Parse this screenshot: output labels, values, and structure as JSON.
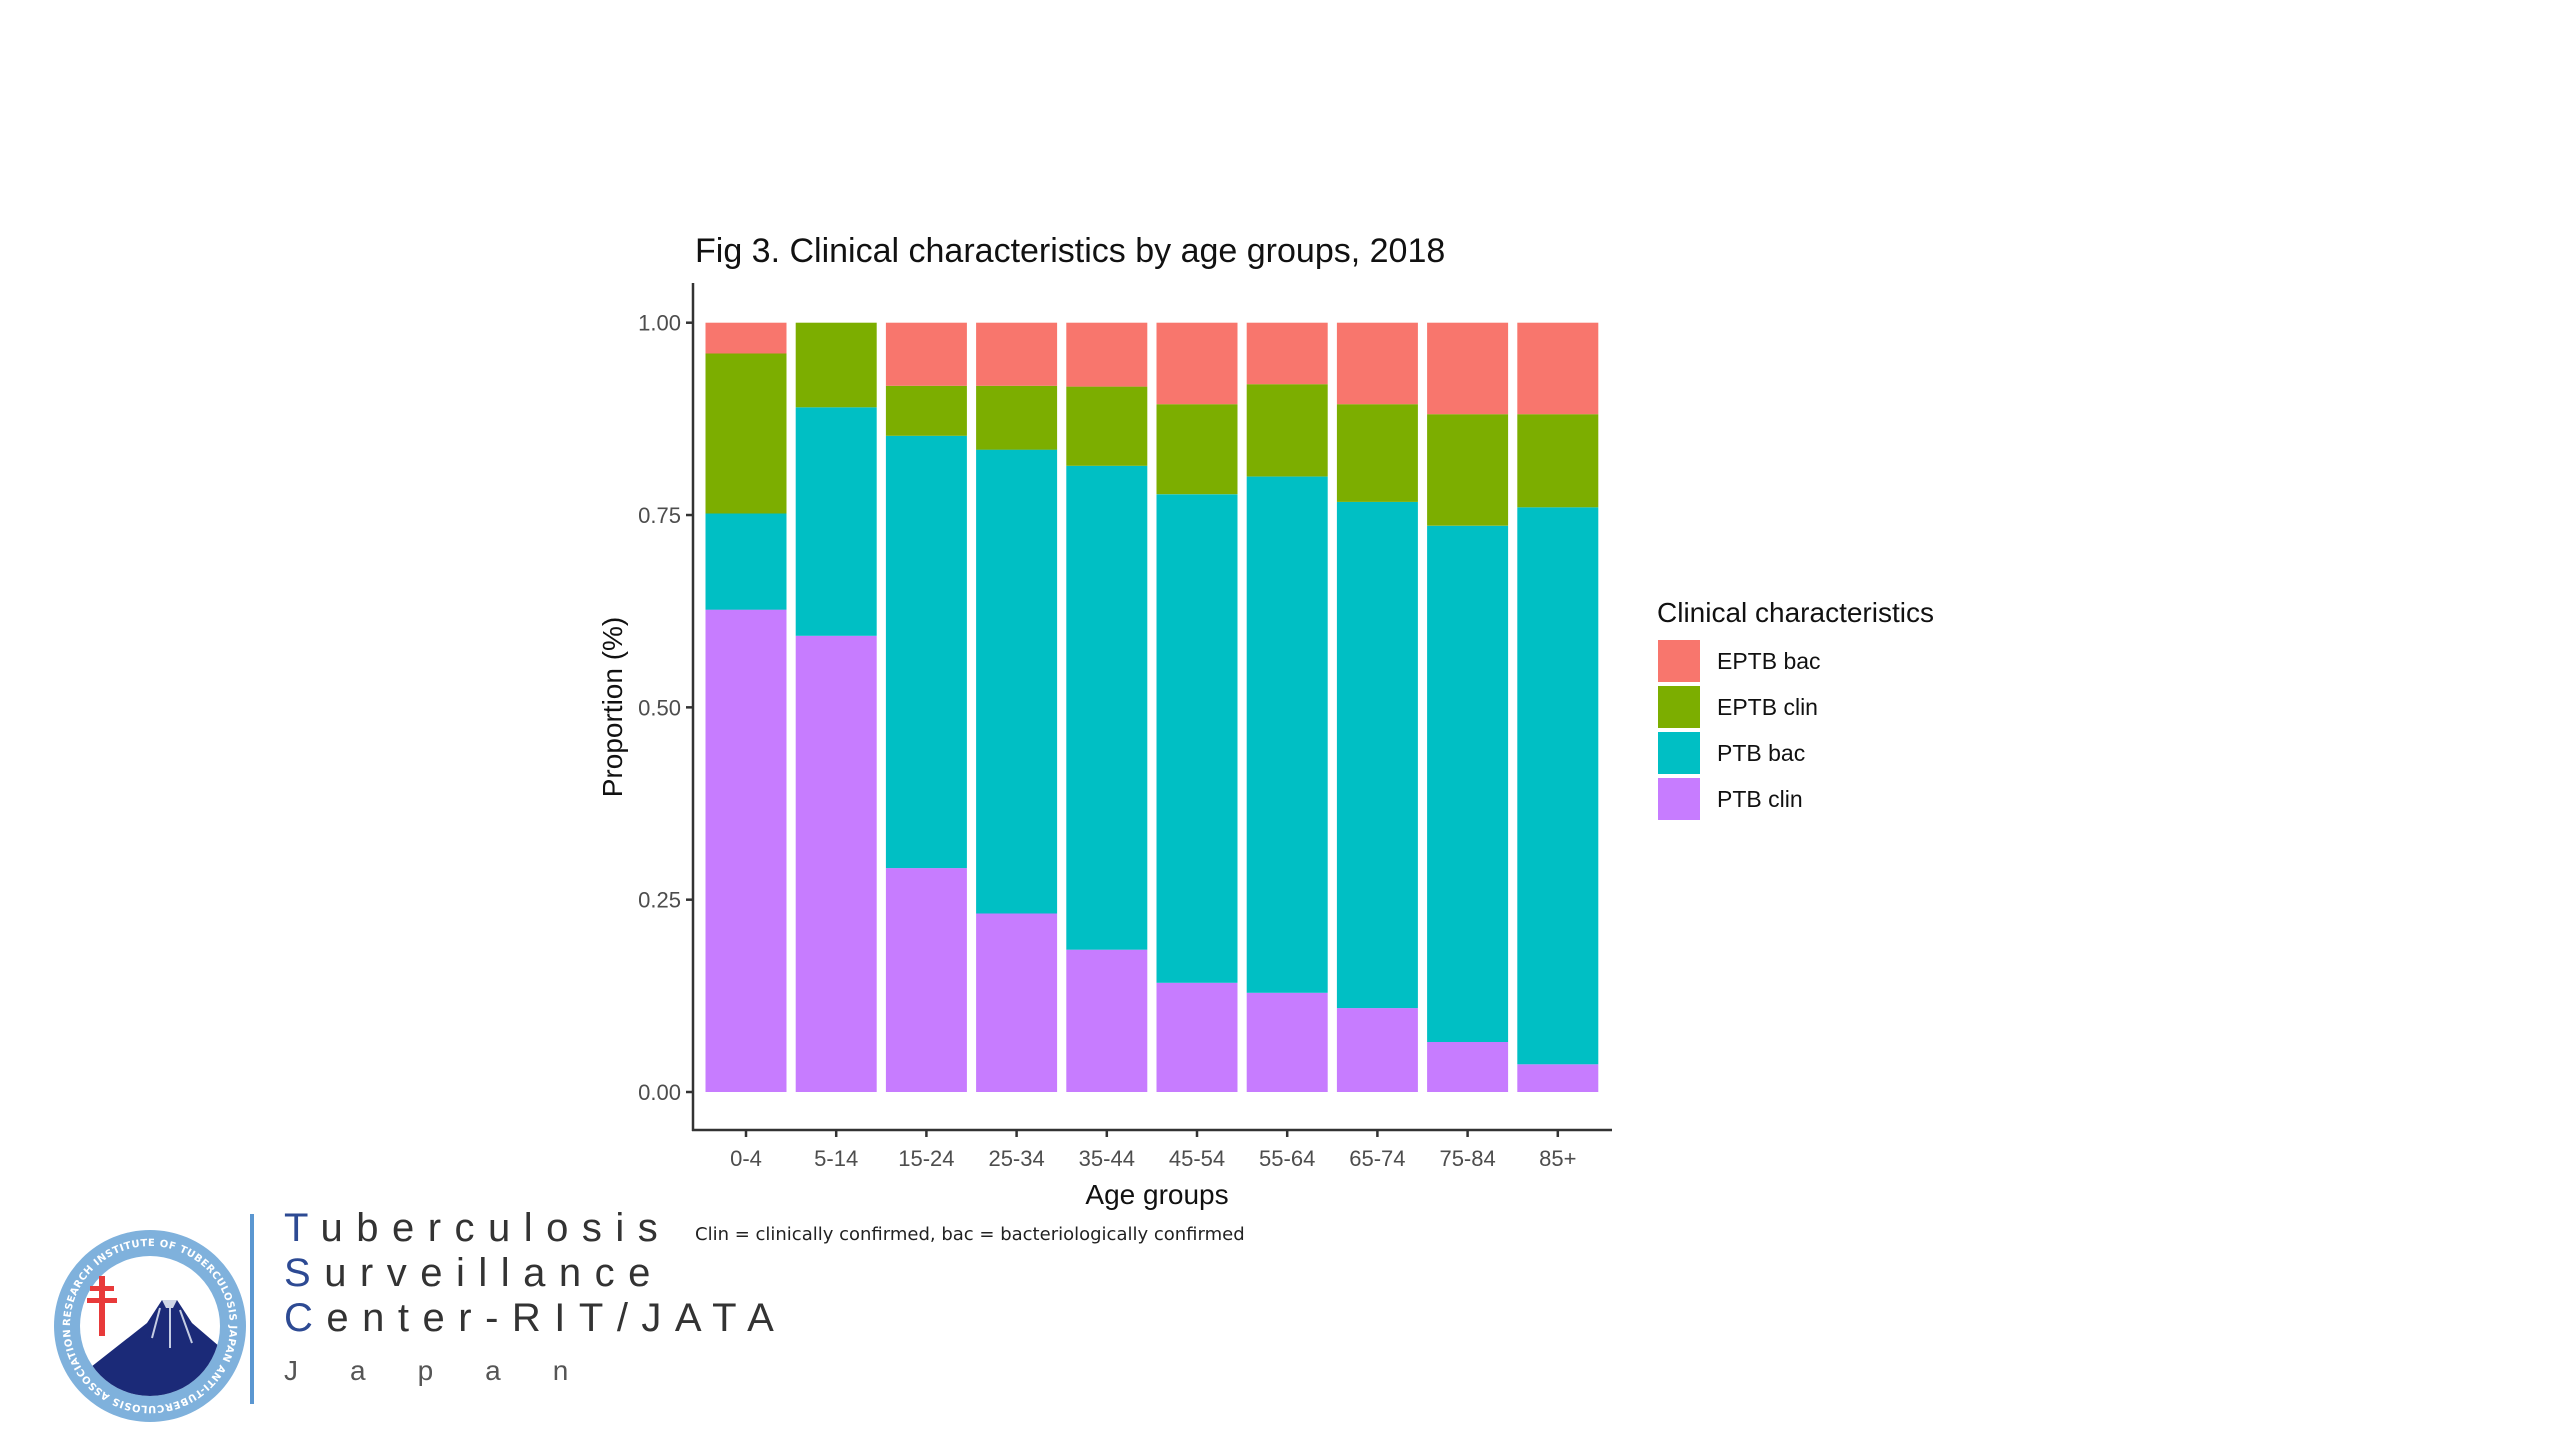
{
  "chart_data": {
    "type": "bar",
    "stacked": true,
    "title": "Fig 3. Clinical characteristics by age groups, 2018",
    "xlabel": "Age groups",
    "ylabel": "Proportion (%)",
    "ylim": [
      0,
      1
    ],
    "yticks": [
      "0.00",
      "0.25",
      "0.50",
      "0.75",
      "1.00"
    ],
    "ytick_values": [
      0,
      0.25,
      0.5,
      0.75,
      1.0
    ],
    "grid": false,
    "categories": [
      "0-4",
      "5-14",
      "15-24",
      "25-34",
      "35-44",
      "45-54",
      "55-64",
      "65-74",
      "75-84",
      "85+"
    ],
    "legend": {
      "title": "Clinical characteristics",
      "placement": "right",
      "entries": [
        "EPTB bac",
        "EPTB clin",
        "PTB bac",
        "PTB clin"
      ]
    },
    "series": [
      {
        "name": "PTB clin",
        "color": "#C77CFF",
        "values": [
          0.627,
          0.593,
          0.291,
          0.232,
          0.185,
          0.142,
          0.129,
          0.109,
          0.065,
          0.036
        ]
      },
      {
        "name": "PTB bac",
        "color": "#00BFC4",
        "values": [
          0.125,
          0.297,
          0.562,
          0.603,
          0.629,
          0.635,
          0.671,
          0.658,
          0.671,
          0.724
        ]
      },
      {
        "name": "EPTB clin",
        "color": "#7CAE00",
        "values": [
          0.208,
          0.11,
          0.065,
          0.083,
          0.103,
          0.117,
          0.12,
          0.127,
          0.145,
          0.121
        ]
      },
      {
        "name": "EPTB bac",
        "color": "#F8766D",
        "values": [
          0.04,
          0.0,
          0.082,
          0.082,
          0.083,
          0.106,
          0.08,
          0.106,
          0.119,
          0.119
        ]
      }
    ],
    "caption": "Clin = clinically confirmed, bac = bacteriologically confirmed"
  },
  "logo": {
    "lines": [
      {
        "lead": "T",
        "rest": "uberculosis"
      },
      {
        "lead": "S",
        "rest": "urveillance"
      },
      {
        "lead": "C",
        "rest": "enter-RIT/JATA"
      }
    ],
    "country": "Japan",
    "emblem_icon": "tuberculosis-institute-emblem-icon",
    "emblem_ring_text": "RESEARCH INSTITUTE OF TUBERCULOSIS JAPAN ANTI-TUBERCULOSIS ASSOCIATION"
  }
}
